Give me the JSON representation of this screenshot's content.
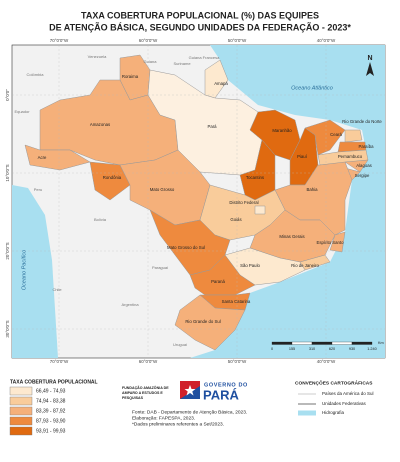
{
  "title": [
    "TAXA COBERTURA POPULACIONAL (%) DAS EQUIPES",
    "DE ATENÇÃO BÁSICA,  SEGUNDO UNIDADES DA FEDERAÇÃO - 2023*"
  ],
  "longitudes": [
    "70°0'0\"W",
    "60°0'0\"W",
    "50°0'0\"W",
    "40°0'0\"W"
  ],
  "latitudes": [
    "0°0'0\"",
    "10°0'0\"S",
    "20°0'0\"S",
    "30°0'0\"S"
  ],
  "oceans": [
    "Oceano Atlântico",
    "Oceano Pacífico"
  ],
  "countries": [
    "Venezuela",
    "Guiana",
    "Suriname",
    "Guiana Francesa",
    "Colômbia",
    "Equador",
    "Peru",
    "Bolívia",
    "Chile",
    "Paraguai",
    "Argentina",
    "Uruguai"
  ],
  "states": [
    {
      "name": "Roraima",
      "color": "#f5b07a"
    },
    {
      "name": "Amapá",
      "color": "#fde9cf"
    },
    {
      "name": "Amazonas",
      "color": "#f5b07a"
    },
    {
      "name": "Pará",
      "color": "#fdf0e0"
    },
    {
      "name": "Acre",
      "color": "#f5b07a"
    },
    {
      "name": "Rondônia",
      "color": "#ee8a3e"
    },
    {
      "name": "Mato Grosso",
      "color": "#f5b07a"
    },
    {
      "name": "Tocantins",
      "color": "#e06a10"
    },
    {
      "name": "Maranhão",
      "color": "#e06a10"
    },
    {
      "name": "Piauí",
      "color": "#e06a10"
    },
    {
      "name": "Ceará",
      "color": "#ee8a3e"
    },
    {
      "name": "Rio Grande do Norte",
      "color": "#f9cc9b"
    },
    {
      "name": "Paraíba",
      "color": "#ee8a3e"
    },
    {
      "name": "Pernambuco",
      "color": "#f9cc9b"
    },
    {
      "name": "Alagoas",
      "color": "#f5b07a"
    },
    {
      "name": "Sergipe",
      "color": "#f5b07a"
    },
    {
      "name": "Bahia",
      "color": "#f5b07a"
    },
    {
      "name": "Goiás",
      "color": "#f9cc9b"
    },
    {
      "name": "Distrito Federal",
      "color": "#fde9cf"
    },
    {
      "name": "Minas Gerais",
      "color": "#f5b07a"
    },
    {
      "name": "Espírito Santo",
      "color": "#f5b07a"
    },
    {
      "name": "Rio de Janeiro",
      "color": "#f9cc9b"
    },
    {
      "name": "São Paulo",
      "color": "#fde9cf"
    },
    {
      "name": "Mato Grosso do Sul",
      "color": "#ee8a3e"
    },
    {
      "name": "Paraná",
      "color": "#ee8a3e"
    },
    {
      "name": "Santa Catarina",
      "color": "#ee8a3e"
    },
    {
      "name": "Rio Grande do Sul",
      "color": "#f5b07a"
    }
  ],
  "north": "N",
  "scale": {
    "labels": [
      "0",
      "155",
      "310",
      "620",
      "930",
      "1.240"
    ],
    "unit": "Km"
  },
  "legend": {
    "title": "TAXA COBERTURA POPULACIONAL",
    "classes": [
      {
        "label": "66,49 - 74,93",
        "color": "#fde9cf"
      },
      {
        "label": "74,94 - 83,38",
        "color": "#f9cc9b"
      },
      {
        "label": "83,39 - 87,92",
        "color": "#f5b07a"
      },
      {
        "label": "87,93 - 93,90",
        "color": "#ee8a3e"
      },
      {
        "label": "93,91 - 99,93",
        "color": "#e06a10"
      }
    ]
  },
  "institution": {
    "fapespa": [
      "FUNDAÇÃO AMAZÔNIA DE",
      "AMPARO A ESTUDOS E",
      "PESQUISAS"
    ],
    "government": "GOVERNO DO",
    "state": "PARÁ"
  },
  "source": [
    "Fonte: DAB - Departamento de Atenção Básica, 2023.",
    "Elaboração: FAPESPA, 2023.",
    "*Dados preliminares referentes a Set/2023."
  ],
  "conventions": {
    "title": "CONVENÇÕES CARTOGRÁFICAS",
    "items": [
      "Países da América do Sul",
      "Unidades Federativas",
      "Hidrografia"
    ]
  }
}
